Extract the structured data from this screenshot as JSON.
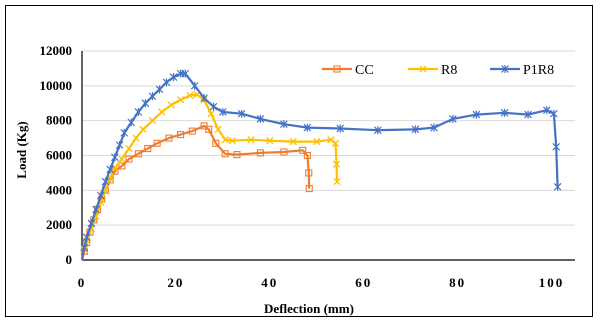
{
  "chart_data": {
    "type": "line",
    "xlabel": "Deflection (mm)",
    "ylabel": "Load (Kg)",
    "xlim": [
      0,
      105
    ],
    "ylim": [
      0,
      12000
    ],
    "x_ticks": [
      "0",
      "20",
      "40",
      "60",
      "80",
      "100"
    ],
    "y_ticks": [
      "0",
      "2000",
      "4000",
      "6000",
      "8000",
      "10000",
      "12000"
    ],
    "grid": "horizontal",
    "legend_position": "top-right",
    "series": [
      {
        "name": "CC",
        "color": "#ED7D31",
        "marker": "square",
        "points": [
          [
            0,
            0
          ],
          [
            0.5,
            500
          ],
          [
            1,
            1000
          ],
          [
            1.7,
            1600
          ],
          [
            2.5,
            2300
          ],
          [
            3.3,
            2900
          ],
          [
            4.2,
            3500
          ],
          [
            5,
            4000
          ],
          [
            6,
            4600
          ],
          [
            7,
            5100
          ],
          [
            8.5,
            5400
          ],
          [
            10,
            5800
          ],
          [
            12,
            6100
          ],
          [
            14,
            6400
          ],
          [
            16,
            6700
          ],
          [
            18.5,
            7000
          ],
          [
            21,
            7200
          ],
          [
            23.5,
            7400
          ],
          [
            26,
            7700
          ],
          [
            27,
            7500
          ],
          [
            28.5,
            6700
          ],
          [
            30.5,
            6100
          ],
          [
            33,
            6050
          ],
          [
            38,
            6150
          ],
          [
            43,
            6200
          ],
          [
            47,
            6300
          ],
          [
            48,
            6000
          ],
          [
            48.3,
            5000
          ],
          [
            48.4,
            4100
          ]
        ]
      },
      {
        "name": "R8",
        "color": "#FFC000",
        "marker": "x",
        "points": [
          [
            0,
            0
          ],
          [
            0.5,
            600
          ],
          [
            1,
            1100
          ],
          [
            2,
            1800
          ],
          [
            3,
            2500
          ],
          [
            4,
            3300
          ],
          [
            5,
            4000
          ],
          [
            6,
            4700
          ],
          [
            7,
            5300
          ],
          [
            8.5,
            5800
          ],
          [
            10,
            6400
          ],
          [
            11.5,
            7000
          ],
          [
            13,
            7500
          ],
          [
            15,
            8000
          ],
          [
            17,
            8500
          ],
          [
            19,
            8900
          ],
          [
            21,
            9200
          ],
          [
            23,
            9450
          ],
          [
            24.5,
            9500
          ],
          [
            26,
            9200
          ],
          [
            27.5,
            8400
          ],
          [
            29,
            7500
          ],
          [
            30.5,
            6900
          ],
          [
            32,
            6850
          ],
          [
            36,
            6900
          ],
          [
            40,
            6850
          ],
          [
            45,
            6800
          ],
          [
            50,
            6800
          ],
          [
            53,
            6900
          ],
          [
            54,
            6700
          ],
          [
            54.2,
            5500
          ],
          [
            54.3,
            4500
          ]
        ]
      },
      {
        "name": "P1R8",
        "color": "#4472C4",
        "marker": "star",
        "points": [
          [
            0,
            0
          ],
          [
            0.5,
            700
          ],
          [
            1,
            1300
          ],
          [
            2,
            2100
          ],
          [
            3,
            2900
          ],
          [
            4,
            3700
          ],
          [
            5,
            4500
          ],
          [
            6,
            5200
          ],
          [
            7,
            5900
          ],
          [
            8,
            6600
          ],
          [
            9,
            7300
          ],
          [
            10.5,
            7900
          ],
          [
            12,
            8500
          ],
          [
            13.5,
            9000
          ],
          [
            15,
            9400
          ],
          [
            16.5,
            9800
          ],
          [
            18,
            10200
          ],
          [
            19.5,
            10500
          ],
          [
            21,
            10700
          ],
          [
            22,
            10700
          ],
          [
            24,
            10000
          ],
          [
            26,
            9300
          ],
          [
            28,
            8800
          ],
          [
            30,
            8500
          ],
          [
            34,
            8400
          ],
          [
            38,
            8100
          ],
          [
            43,
            7800
          ],
          [
            48,
            7600
          ],
          [
            55,
            7550
          ],
          [
            63,
            7450
          ],
          [
            71,
            7500
          ],
          [
            75,
            7600
          ],
          [
            79,
            8100
          ],
          [
            84,
            8350
          ],
          [
            90,
            8450
          ],
          [
            95,
            8350
          ],
          [
            99,
            8600
          ],
          [
            100.5,
            8400
          ],
          [
            101,
            6500
          ],
          [
            101.3,
            4200
          ]
        ]
      }
    ]
  }
}
